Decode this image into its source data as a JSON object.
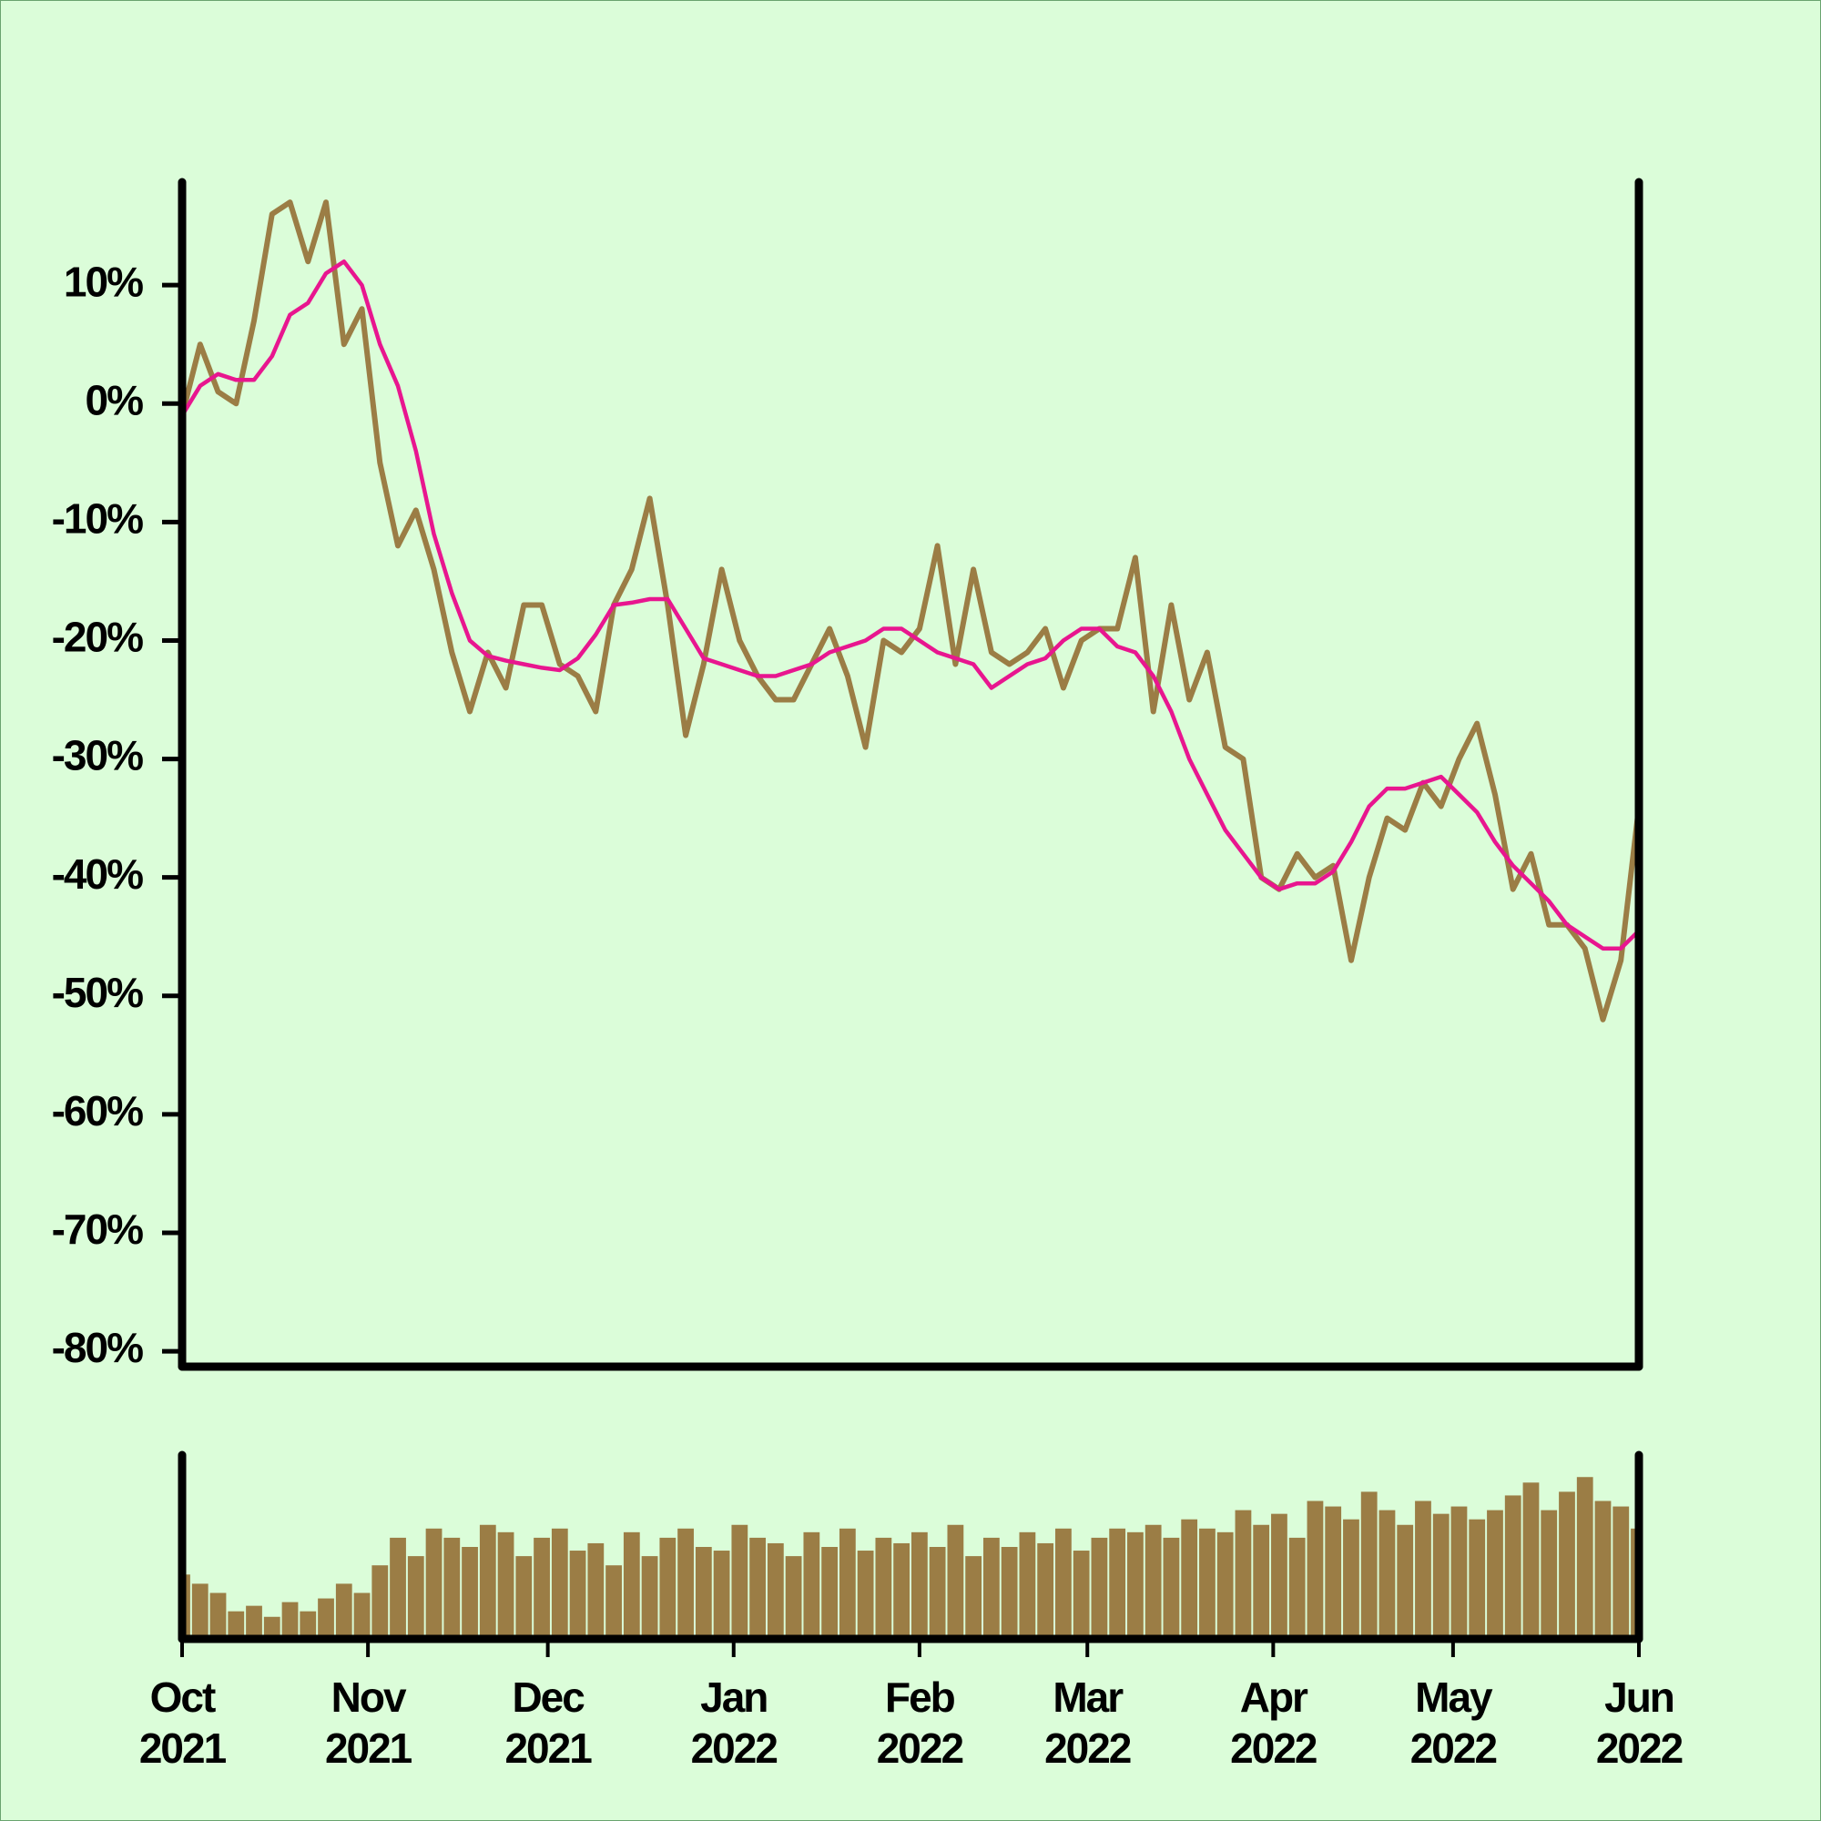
{
  "chart_data": [
    {
      "type": "line",
      "xlim": [
        0,
        243
      ],
      "ylim": [
        -81.3,
        18.7
      ],
      "yticks": [
        {
          "value": 10,
          "label": "10%"
        },
        {
          "value": 0,
          "label": "0%"
        },
        {
          "value": -10,
          "label": "-10%"
        },
        {
          "value": -20,
          "label": "-20%"
        },
        {
          "value": -30,
          "label": "-30%"
        },
        {
          "value": -40,
          "label": "-40%"
        },
        {
          "value": -50,
          "label": "-50%"
        },
        {
          "value": -60,
          "label": "-60%"
        },
        {
          "value": -70,
          "label": "-70%"
        },
        {
          "value": -80,
          "label": "-80%"
        }
      ],
      "x": [
        0,
        3,
        6,
        9,
        12,
        15,
        18,
        21,
        24,
        27,
        30,
        33,
        36,
        39,
        42,
        45,
        48,
        51,
        54,
        57,
        60,
        63,
        66,
        69,
        72,
        75,
        78,
        81,
        84,
        87,
        90,
        93,
        96,
        99,
        102,
        105,
        108,
        111,
        114,
        117,
        120,
        123,
        126,
        129,
        132,
        135,
        138,
        141,
        144,
        147,
        150,
        153,
        156,
        159,
        162,
        165,
        168,
        171,
        174,
        177,
        180,
        183,
        186,
        189,
        192,
        195,
        198,
        201,
        204,
        207,
        210,
        213,
        216,
        219,
        222,
        225,
        228,
        231,
        234,
        237,
        240,
        243
      ],
      "series": [
        {
          "color": "#9b7d45",
          "values": [
            -1,
            5,
            1,
            0,
            7,
            16,
            17,
            12,
            17,
            5,
            8,
            -5,
            -12,
            -9,
            -14,
            -21,
            -26,
            -21,
            -24,
            -17,
            -17,
            -22,
            -23,
            -26,
            -17,
            -14,
            -8,
            -17,
            -28,
            -22,
            -14,
            -20,
            -23,
            -25,
            -25,
            -22,
            -19,
            -23,
            -29,
            -20,
            -21,
            -19,
            -12,
            -22,
            -14,
            -21,
            -22,
            -21,
            -19,
            -24,
            -20,
            -19,
            -19,
            -13,
            -26,
            -17,
            -25,
            -21,
            -29,
            -30,
            -40,
            -41,
            -38,
            -40,
            -39,
            -47,
            -40,
            -35,
            -36,
            -32,
            -34,
            -30,
            -27,
            -33,
            -41,
            -38,
            -44,
            -44,
            -46,
            -52,
            -47,
            -34
          ]
        },
        {
          "color": "#e8168f",
          "values": [
            -1,
            1.5,
            2.5,
            2,
            2,
            4,
            7.5,
            8.5,
            11,
            12,
            10,
            5,
            1.5,
            -4,
            -11,
            -16,
            -20,
            -21.3,
            -21.7,
            -22,
            -22.3,
            -22.5,
            -21.5,
            -19.5,
            -17,
            -16.8,
            -16.5,
            -16.5,
            -19,
            -21.5,
            -22,
            -22.5,
            -23,
            -23,
            -22.5,
            -22,
            -21,
            -20.5,
            -20,
            -19,
            -19,
            -20,
            -21,
            -21.5,
            -22,
            -24,
            -23,
            -22,
            -21.5,
            -20,
            -19,
            -19,
            -20.5,
            -21,
            -23,
            -26,
            -30,
            -33,
            -36,
            -38,
            -40,
            -41,
            -40.5,
            -40.5,
            -39.5,
            -37,
            -34,
            -32.5,
            -32.5,
            -32,
            -31.5,
            -33,
            -34.5,
            -37,
            -39,
            -40.5,
            -42,
            -44,
            -45,
            -46,
            -46,
            -44.5
          ]
        }
      ]
    },
    {
      "type": "bar",
      "xlim": [
        0,
        243
      ],
      "ylim": [
        0,
        100
      ],
      "color": "#9b7d45",
      "x": [
        0,
        3,
        6,
        9,
        12,
        15,
        18,
        21,
        24,
        27,
        30,
        33,
        36,
        39,
        42,
        45,
        48,
        51,
        54,
        57,
        60,
        63,
        66,
        69,
        72,
        75,
        78,
        81,
        84,
        87,
        90,
        93,
        96,
        99,
        102,
        105,
        108,
        111,
        114,
        117,
        120,
        123,
        126,
        129,
        132,
        135,
        138,
        141,
        144,
        147,
        150,
        153,
        156,
        159,
        162,
        165,
        168,
        171,
        174,
        177,
        180,
        183,
        186,
        189,
        192,
        195,
        198,
        201,
        204,
        207,
        210,
        213,
        216,
        219,
        222,
        225,
        228,
        231,
        234,
        237,
        240,
        243
      ],
      "values": [
        35,
        30,
        25,
        15,
        18,
        12,
        20,
        15,
        22,
        30,
        25,
        40,
        55,
        45,
        60,
        55,
        50,
        62,
        58,
        45,
        55,
        60,
        48,
        52,
        40,
        58,
        45,
        55,
        60,
        50,
        48,
        62,
        55,
        52,
        45,
        58,
        50,
        60,
        48,
        55,
        52,
        58,
        50,
        62,
        45,
        55,
        50,
        58,
        52,
        60,
        48,
        55,
        60,
        58,
        62,
        55,
        65,
        60,
        58,
        70,
        62,
        68,
        55,
        75,
        72,
        65,
        80,
        70,
        62,
        75,
        68,
        72,
        65,
        70,
        78,
        85,
        70,
        80,
        88,
        75,
        72,
        60
      ],
      "xticks": [
        {
          "value": 0,
          "label": [
            "Oct",
            "2021"
          ]
        },
        {
          "value": 31,
          "label": [
            "Nov",
            "2021"
          ]
        },
        {
          "value": 61,
          "label": [
            "Dec",
            "2021"
          ]
        },
        {
          "value": 92,
          "label": [
            "Jan",
            "2022"
          ]
        },
        {
          "value": 123,
          "label": [
            "Feb",
            "2022"
          ]
        },
        {
          "value": 151,
          "label": [
            "Mar",
            "2022"
          ]
        },
        {
          "value": 182,
          "label": [
            "Apr",
            "2022"
          ]
        },
        {
          "value": 212,
          "label": [
            "May",
            "2022"
          ]
        },
        {
          "value": 243,
          "label": [
            "Jun",
            "2022"
          ]
        }
      ]
    }
  ]
}
